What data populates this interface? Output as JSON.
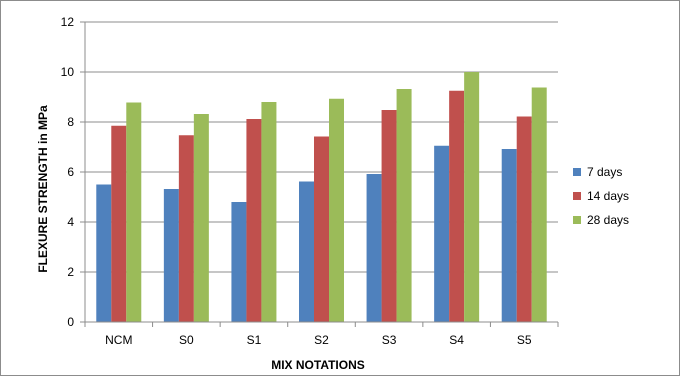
{
  "chart_data": {
    "type": "bar",
    "xlabel": "MIX NOTATIONS",
    "ylabel": "FLEXURE STRENGTH in MPa",
    "ylim": [
      0,
      12
    ],
    "yticks": [
      0,
      2,
      4,
      6,
      8,
      10,
      12
    ],
    "grid": true,
    "legend_position": "right",
    "categories": [
      "NCM",
      "S0",
      "S1",
      "S2",
      "S3",
      "S4",
      "S5"
    ],
    "series": [
      {
        "name": "7 days",
        "color": "#4f81bd",
        "values": [
          5.5,
          5.32,
          4.8,
          5.62,
          5.92,
          7.05,
          6.92
        ]
      },
      {
        "name": "14 days",
        "color": "#c0504d",
        "values": [
          7.85,
          7.47,
          8.12,
          7.42,
          8.48,
          9.25,
          8.22
        ]
      },
      {
        "name": "28 days",
        "color": "#9bbb59",
        "values": [
          8.78,
          8.32,
          8.8,
          8.93,
          9.32,
          10.0,
          9.38
        ]
      }
    ]
  }
}
